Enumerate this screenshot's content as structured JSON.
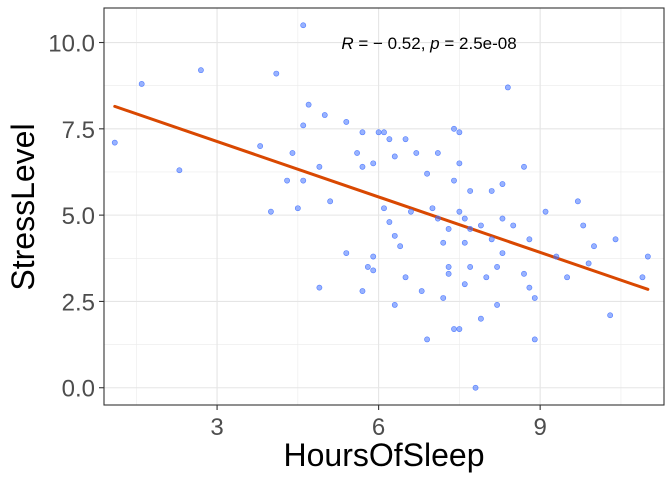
{
  "chart_data": {
    "type": "scatter",
    "xlabel": "HoursOfSleep",
    "ylabel": "StressLevel",
    "xlim": [
      0.9,
      11.3
    ],
    "ylim": [
      -0.5,
      11.0
    ],
    "xticks": [
      3,
      6,
      9
    ],
    "xtick_labels": [
      "3",
      "6",
      "9"
    ],
    "yticks": [
      0.0,
      2.5,
      5.0,
      7.5,
      10.0
    ],
    "ytick_labels": [
      "0.0",
      "2.5",
      "5.0",
      "7.5",
      "10.0"
    ],
    "grid": true,
    "annotation": {
      "r_symbol": "R",
      "r_value": " = − 0.52, ",
      "p_symbol": "p",
      "p_value": " = 2.5e-08"
    },
    "regression": {
      "x": [
        1.1,
        11.0
      ],
      "y": [
        8.15,
        2.85
      ],
      "color": "#d94801"
    },
    "point_color": "#4472ff",
    "points": [
      {
        "x": 1.1,
        "y": 7.1
      },
      {
        "x": 1.6,
        "y": 8.8
      },
      {
        "x": 2.3,
        "y": 6.3
      },
      {
        "x": 2.7,
        "y": 9.2
      },
      {
        "x": 3.8,
        "y": 7.0
      },
      {
        "x": 4.0,
        "y": 5.1
      },
      {
        "x": 4.1,
        "y": 9.1
      },
      {
        "x": 4.3,
        "y": 6.0
      },
      {
        "x": 4.4,
        "y": 6.8
      },
      {
        "x": 4.5,
        "y": 5.2
      },
      {
        "x": 4.6,
        "y": 6.0
      },
      {
        "x": 4.6,
        "y": 10.5
      },
      {
        "x": 4.6,
        "y": 7.6
      },
      {
        "x": 4.7,
        "y": 8.2
      },
      {
        "x": 4.9,
        "y": 6.4
      },
      {
        "x": 4.9,
        "y": 2.9
      },
      {
        "x": 5.0,
        "y": 7.9
      },
      {
        "x": 5.1,
        "y": 5.4
      },
      {
        "x": 5.4,
        "y": 7.7
      },
      {
        "x": 5.4,
        "y": 3.9
      },
      {
        "x": 5.6,
        "y": 6.8
      },
      {
        "x": 5.7,
        "y": 2.8
      },
      {
        "x": 5.7,
        "y": 7.4
      },
      {
        "x": 5.7,
        "y": 6.4
      },
      {
        "x": 5.8,
        "y": 3.5
      },
      {
        "x": 5.9,
        "y": 3.4
      },
      {
        "x": 5.9,
        "y": 3.8
      },
      {
        "x": 5.9,
        "y": 6.5
      },
      {
        "x": 6.0,
        "y": 7.4
      },
      {
        "x": 6.1,
        "y": 5.2
      },
      {
        "x": 6.1,
        "y": 7.4
      },
      {
        "x": 6.2,
        "y": 7.2
      },
      {
        "x": 6.2,
        "y": 4.8
      },
      {
        "x": 6.3,
        "y": 2.4
      },
      {
        "x": 6.3,
        "y": 4.4
      },
      {
        "x": 6.3,
        "y": 6.7
      },
      {
        "x": 6.4,
        "y": 4.1
      },
      {
        "x": 6.5,
        "y": 7.2
      },
      {
        "x": 6.5,
        "y": 3.2
      },
      {
        "x": 6.6,
        "y": 5.1
      },
      {
        "x": 6.7,
        "y": 6.8
      },
      {
        "x": 6.8,
        "y": 2.8
      },
      {
        "x": 6.9,
        "y": 6.2
      },
      {
        "x": 6.9,
        "y": 1.4
      },
      {
        "x": 7.0,
        "y": 5.2
      },
      {
        "x": 7.1,
        "y": 4.9
      },
      {
        "x": 7.1,
        "y": 6.8
      },
      {
        "x": 7.2,
        "y": 4.2
      },
      {
        "x": 7.2,
        "y": 2.6
      },
      {
        "x": 7.3,
        "y": 3.3
      },
      {
        "x": 7.3,
        "y": 4.6
      },
      {
        "x": 7.3,
        "y": 3.5
      },
      {
        "x": 7.4,
        "y": 1.7
      },
      {
        "x": 7.4,
        "y": 7.5
      },
      {
        "x": 7.4,
        "y": 6.0
      },
      {
        "x": 7.5,
        "y": 7.4
      },
      {
        "x": 7.5,
        "y": 6.5
      },
      {
        "x": 7.5,
        "y": 5.1
      },
      {
        "x": 7.5,
        "y": 1.7
      },
      {
        "x": 7.6,
        "y": 4.2
      },
      {
        "x": 7.6,
        "y": 3.0
      },
      {
        "x": 7.6,
        "y": 4.9
      },
      {
        "x": 7.7,
        "y": 5.7
      },
      {
        "x": 7.7,
        "y": 4.6
      },
      {
        "x": 7.7,
        "y": 3.5
      },
      {
        "x": 7.8,
        "y": 0.0
      },
      {
        "x": 7.9,
        "y": 2.0
      },
      {
        "x": 7.9,
        "y": 4.7
      },
      {
        "x": 8.0,
        "y": 3.2
      },
      {
        "x": 8.1,
        "y": 5.7
      },
      {
        "x": 8.1,
        "y": 4.3
      },
      {
        "x": 8.2,
        "y": 2.4
      },
      {
        "x": 8.2,
        "y": 3.5
      },
      {
        "x": 8.3,
        "y": 5.9
      },
      {
        "x": 8.3,
        "y": 4.9
      },
      {
        "x": 8.3,
        "y": 3.9
      },
      {
        "x": 8.4,
        "y": 8.7
      },
      {
        "x": 8.5,
        "y": 4.7
      },
      {
        "x": 8.7,
        "y": 6.4
      },
      {
        "x": 8.7,
        "y": 3.3
      },
      {
        "x": 8.8,
        "y": 2.9
      },
      {
        "x": 8.8,
        "y": 4.3
      },
      {
        "x": 8.9,
        "y": 2.6
      },
      {
        "x": 8.9,
        "y": 1.4
      },
      {
        "x": 9.1,
        "y": 5.1
      },
      {
        "x": 9.3,
        "y": 3.8
      },
      {
        "x": 9.5,
        "y": 3.2
      },
      {
        "x": 9.7,
        "y": 5.4
      },
      {
        "x": 9.8,
        "y": 4.7
      },
      {
        "x": 9.9,
        "y": 3.6
      },
      {
        "x": 10.0,
        "y": 4.1
      },
      {
        "x": 10.3,
        "y": 2.1
      },
      {
        "x": 10.4,
        "y": 4.3
      },
      {
        "x": 10.9,
        "y": 3.2
      },
      {
        "x": 11.0,
        "y": 3.8
      }
    ]
  }
}
